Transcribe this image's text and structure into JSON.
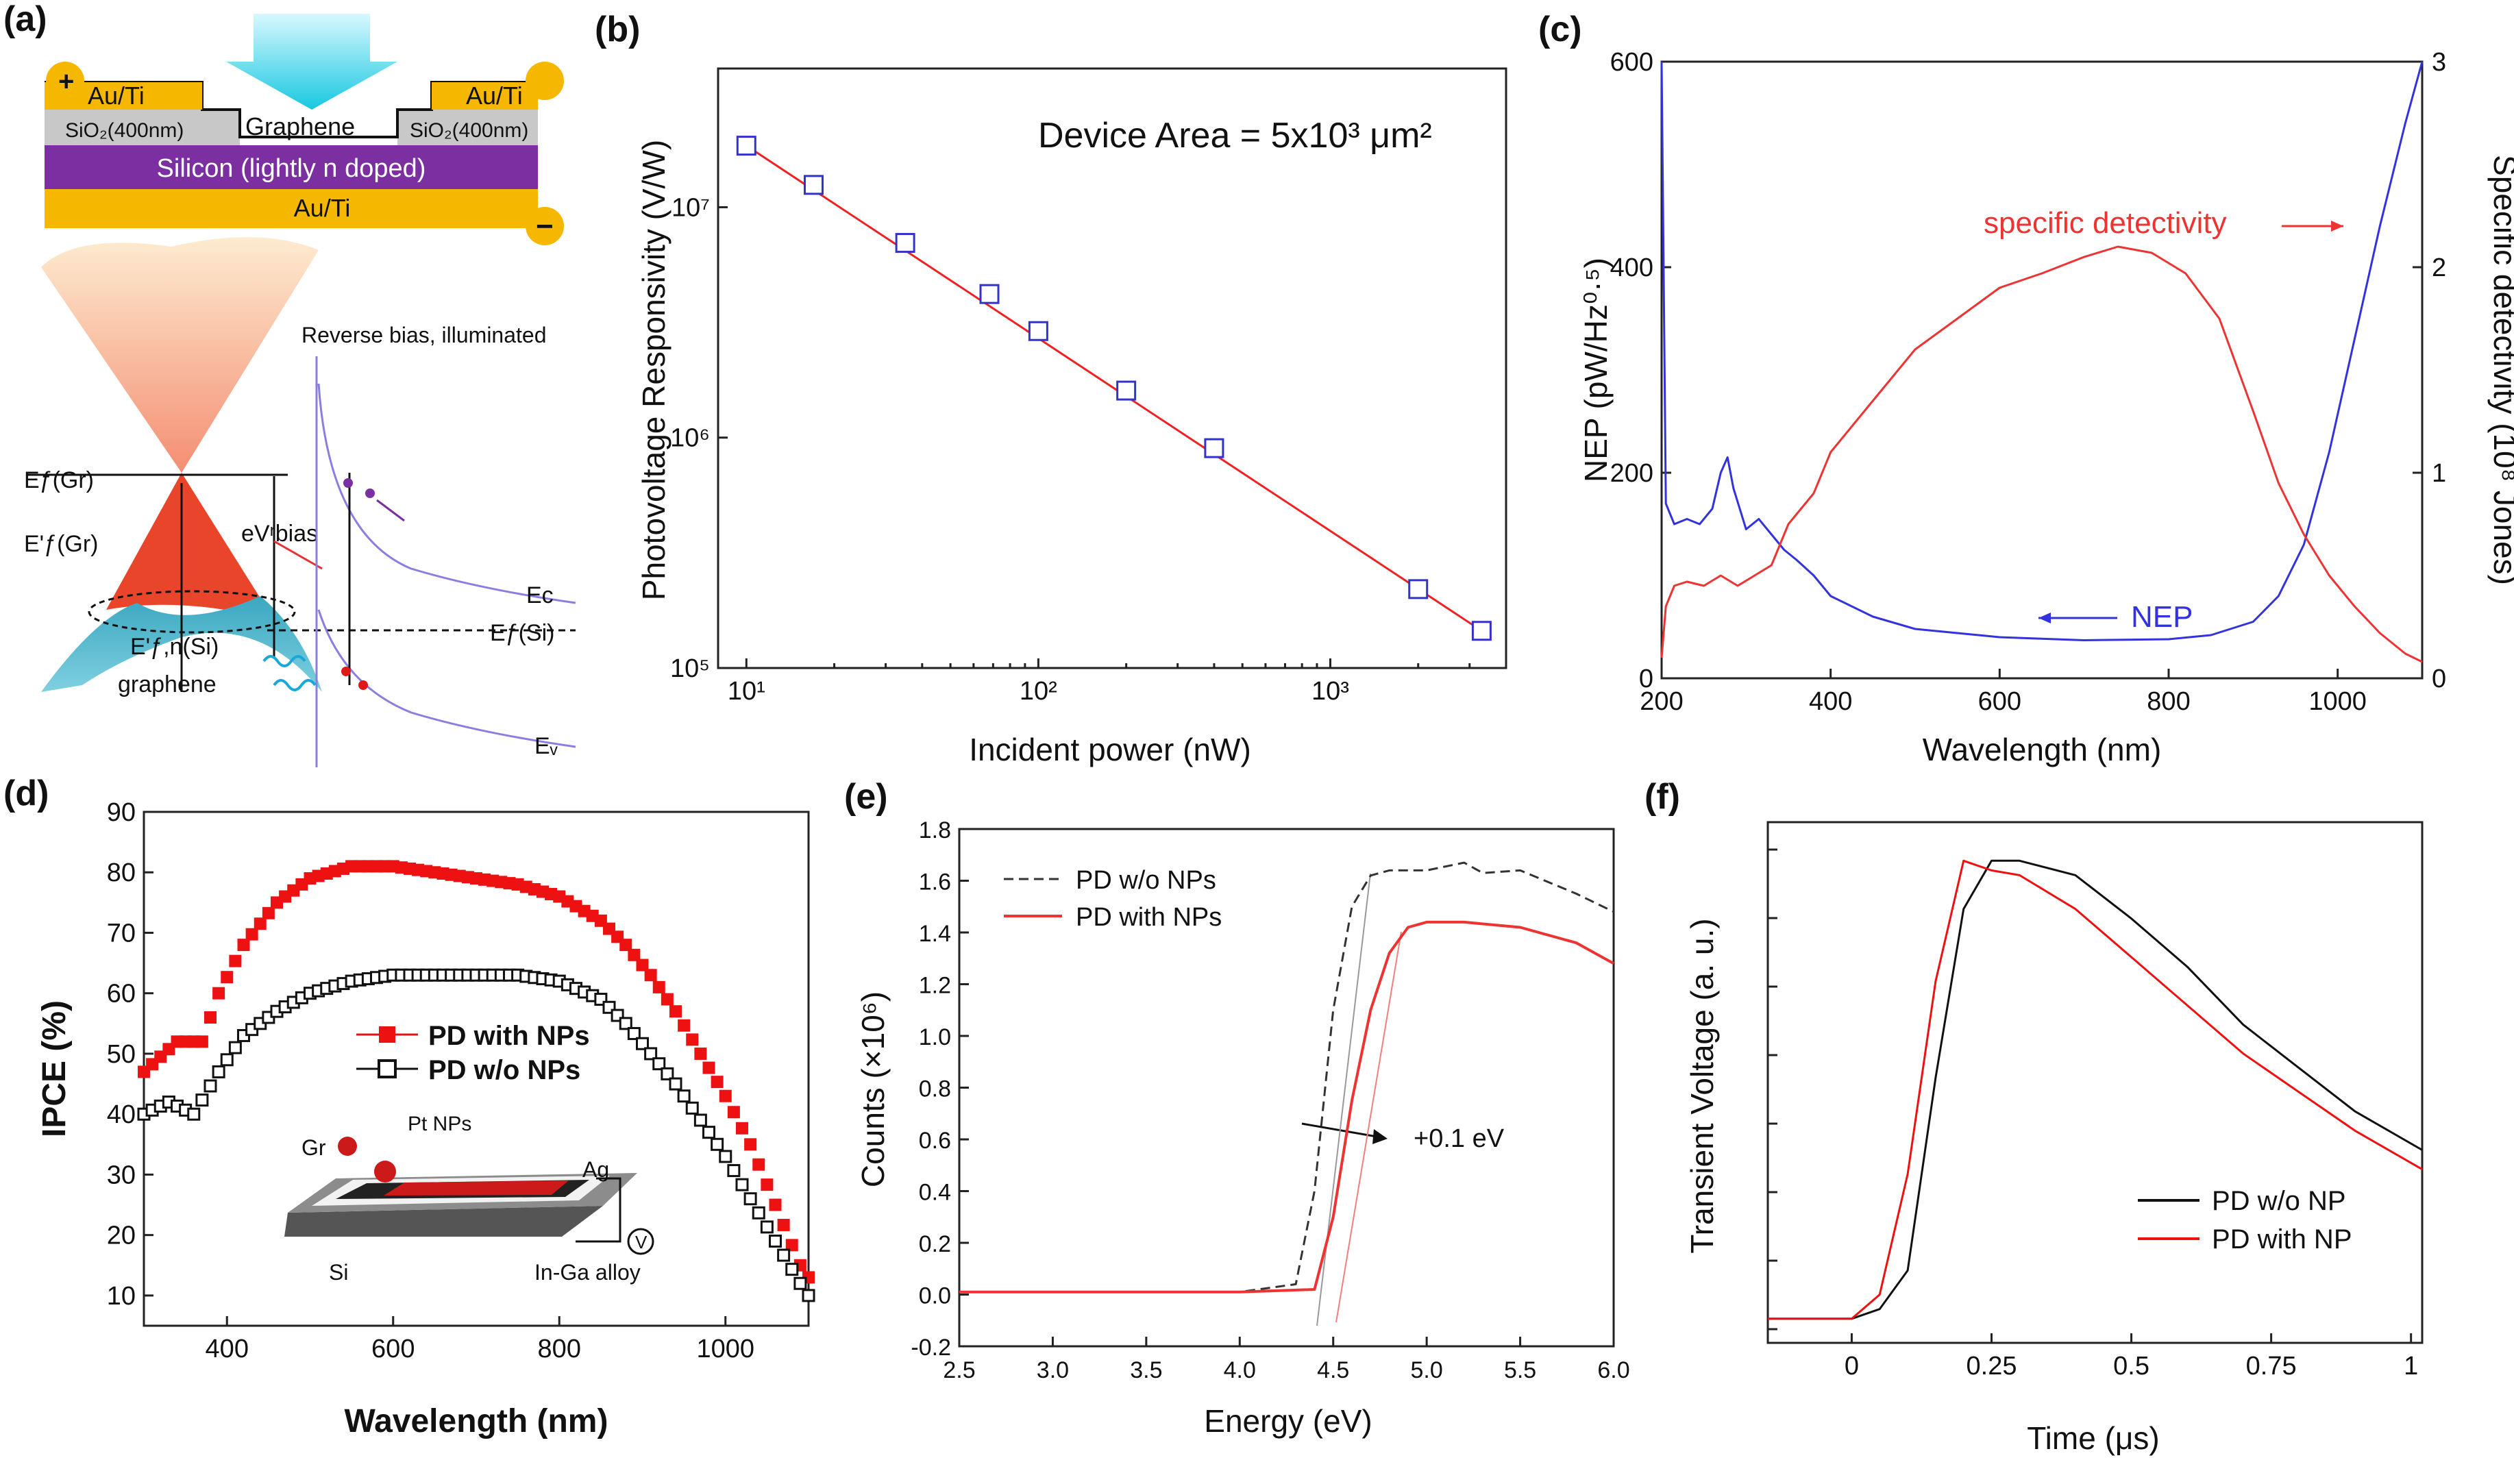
{
  "panels": {
    "a": "(a)",
    "b": "(b)",
    "c": "(c)",
    "d": "(d)",
    "e": "(e)",
    "f": "(f)"
  },
  "diagram_a": {
    "electrode_left": "Au/Ti",
    "electrode_right": "Au/Ti",
    "oxide_left": "SiO₂(400nm)",
    "oxide_right": "SiO₂(400nm)",
    "center_layer": "Graphene",
    "substrate": "Silicon (lightly n doped)",
    "back_contact": "Au/Ti",
    "plus_sign": "+",
    "minus_sign": "−",
    "title": "Reverse bias, illuminated",
    "ef_gr": "Eƒ(Gr)",
    "ef_gr_prime": "E'ƒ(Gr)",
    "efn_si": "E'ƒ,n(Si)",
    "ev_bias": "eVʳbias",
    "ec": "Eᴄ",
    "ef_si": "Eƒ(Si)",
    "ev": "Eᵥ",
    "graphene": "graphene",
    "colors": {
      "gold": "#f5b700",
      "silicon": "#7b2fa0",
      "oxide": "#c8c8c8",
      "cone": "#e8452b",
      "band": "#8a7ee0"
    }
  },
  "chart_data": [
    {
      "id": "b",
      "type": "line",
      "title": "",
      "annotation": "Device Area = 5x10³ μm²",
      "xlabel": "Incident power (nW)",
      "ylabel": "Photovoltage Responsivity (V/W)",
      "xscale": "log",
      "yscale": "log",
      "xlim": [
        8,
        4000
      ],
      "ylim": [
        100000,
        40000000
      ],
      "x_ticks": [
        "10¹",
        "10²",
        "10³"
      ],
      "y_ticks": [
        "10⁵",
        "10⁶",
        "10⁷"
      ],
      "series": [
        {
          "name": "data",
          "marker": "open-square",
          "color": "#3333cc",
          "x": [
            10,
            17,
            35,
            68,
            100,
            200,
            400,
            2000,
            3300
          ],
          "y": [
            18500000,
            12500000,
            7000000,
            4200000,
            2900000,
            1600000,
            900000,
            220000,
            145000
          ]
        },
        {
          "name": "fit",
          "line": "solid",
          "color": "#ee2222",
          "x": [
            10,
            3300
          ],
          "y": [
            18500000,
            145000
          ]
        }
      ]
    },
    {
      "id": "c",
      "type": "line",
      "xlabel": "Wavelength (nm)",
      "ylabel": "NEP (pW/Hz⁰·⁵)",
      "ylabel_right": "Specific detectivity (10⁸ Jones)",
      "xlim": [
        200,
        1100
      ],
      "ylim": [
        0,
        600
      ],
      "ylim_right": [
        0,
        3
      ],
      "x_ticks": [
        "200",
        "400",
        "600",
        "800",
        "1000"
      ],
      "y_ticks": [
        "0",
        "200",
        "400",
        "600"
      ],
      "y_ticks_right": [
        "0",
        "1",
        "2",
        "3"
      ],
      "annotations": {
        "detectivity": "specific detectivity",
        "nep": "NEP"
      },
      "series": [
        {
          "name": "NEP",
          "color": "#3333dd",
          "x": [
            200,
            205,
            215,
            230,
            245,
            260,
            270,
            278,
            285,
            300,
            315,
            330,
            345,
            360,
            380,
            400,
            450,
            500,
            600,
            700,
            800,
            850,
            900,
            930,
            960,
            990,
            1020,
            1050,
            1080,
            1100
          ],
          "y": [
            600,
            170,
            150,
            155,
            150,
            165,
            200,
            215,
            185,
            145,
            155,
            140,
            125,
            115,
            100,
            80,
            60,
            48,
            40,
            37,
            38,
            42,
            55,
            80,
            130,
            220,
            330,
            440,
            540,
            600
          ]
        },
        {
          "name": "specific detectivity",
          "color": "#ee3333",
          "axis": "right",
          "x": [
            200,
            205,
            215,
            230,
            250,
            270,
            290,
            310,
            330,
            350,
            380,
            400,
            450,
            500,
            550,
            600,
            650,
            700,
            740,
            780,
            820,
            860,
            900,
            930,
            960,
            990,
            1020,
            1050,
            1080,
            1100
          ],
          "y": [
            0.1,
            0.35,
            0.45,
            0.47,
            0.45,
            0.5,
            0.45,
            0.5,
            0.55,
            0.75,
            0.9,
            1.1,
            1.35,
            1.6,
            1.75,
            1.9,
            1.97,
            2.05,
            2.1,
            2.07,
            1.97,
            1.75,
            1.3,
            0.95,
            0.7,
            0.5,
            0.35,
            0.22,
            0.12,
            0.08
          ]
        }
      ]
    },
    {
      "id": "d",
      "type": "scatter",
      "xlabel": "Wavelength (nm)",
      "ylabel": "IPCE (%)",
      "xlim": [
        300,
        1100
      ],
      "ylim": [
        5,
        90
      ],
      "x_ticks": [
        "400",
        "600",
        "800",
        "1000"
      ],
      "y_ticks": [
        "10",
        "20",
        "30",
        "40",
        "50",
        "60",
        "70",
        "80",
        "90"
      ],
      "inset": {
        "pt": "Pt NPs",
        "gr": "Gr",
        "ag": "Ag",
        "si": "Si",
        "ingaalloy": "In-Ga alloy",
        "meter": "V"
      },
      "series": [
        {
          "name": "PD with NPs",
          "marker": "filled-square",
          "color": "#ee1111",
          "x": [
            300,
            340,
            370,
            390,
            420,
            460,
            500,
            550,
            600,
            650,
            700,
            750,
            800,
            850,
            880,
            910,
            940,
            970,
            1000,
            1030,
            1060,
            1090,
            1100
          ],
          "y": [
            47,
            52,
            52,
            60,
            68,
            75,
            79,
            81,
            81,
            80,
            79,
            78,
            76,
            72,
            68,
            63,
            57,
            50,
            43,
            35,
            25,
            15,
            13
          ]
        },
        {
          "name": "PD w/o NPs",
          "marker": "open-square",
          "color": "#111111",
          "x": [
            300,
            330,
            360,
            390,
            420,
            460,
            500,
            550,
            600,
            650,
            700,
            750,
            800,
            850,
            880,
            910,
            940,
            970,
            1000,
            1030,
            1060,
            1090,
            1100
          ],
          "y": [
            40,
            42,
            40,
            47,
            53,
            57,
            60,
            62,
            63,
            63,
            63,
            63,
            62,
            59,
            55,
            50,
            45,
            39,
            33,
            26,
            19,
            12,
            10
          ]
        }
      ]
    },
    {
      "id": "e",
      "type": "line",
      "xlabel": "Energy (eV)",
      "ylabel": "Counts (×10⁶)",
      "xlim": [
        2.5,
        6.0
      ],
      "ylim": [
        -0.2,
        1.8
      ],
      "x_ticks": [
        "2.5",
        "3.0",
        "3.5",
        "4.0",
        "4.5",
        "5.0",
        "5.5",
        "6.0"
      ],
      "y_ticks": [
        "-0.2",
        "0.0",
        "0.2",
        "0.4",
        "0.6",
        "0.8",
        "1.0",
        "1.2",
        "1.4",
        "1.6",
        "1.8"
      ],
      "annotation": "+0.1 eV",
      "series": [
        {
          "name": "PD w/o NPs",
          "line": "dashed",
          "color": "#333333",
          "x": [
            2.5,
            4.0,
            4.3,
            4.4,
            4.5,
            4.6,
            4.7,
            4.8,
            5.0,
            5.2,
            5.3,
            5.5,
            5.8,
            6.0
          ],
          "y": [
            0.01,
            0.01,
            0.04,
            0.4,
            1.1,
            1.5,
            1.62,
            1.64,
            1.64,
            1.67,
            1.63,
            1.64,
            1.55,
            1.48
          ]
        },
        {
          "name": "PD with NPs",
          "line": "solid",
          "color": "#ee3333",
          "x": [
            2.5,
            4.0,
            4.4,
            4.5,
            4.6,
            4.7,
            4.8,
            4.9,
            5.0,
            5.2,
            5.5,
            5.8,
            6.0
          ],
          "y": [
            0.01,
            0.01,
            0.02,
            0.3,
            0.75,
            1.1,
            1.32,
            1.42,
            1.44,
            1.44,
            1.42,
            1.36,
            1.28
          ]
        }
      ]
    },
    {
      "id": "f",
      "type": "line",
      "xlabel": "Time (μs)",
      "ylabel": "Transient Voltage (a. u.)",
      "xlim": [
        -0.15,
        1.02
      ],
      "ylim": [
        0,
        1.08
      ],
      "x_ticks": [
        "0",
        "0.25",
        "0.5",
        "0.75",
        "1"
      ],
      "series": [
        {
          "name": "PD w/o NP",
          "color": "#111111",
          "x": [
            -0.15,
            0.0,
            0.05,
            0.1,
            0.15,
            0.2,
            0.25,
            0.3,
            0.4,
            0.5,
            0.6,
            0.7,
            0.8,
            0.9,
            1.02
          ],
          "y": [
            0.05,
            0.05,
            0.07,
            0.15,
            0.55,
            0.9,
            1.0,
            1.0,
            0.97,
            0.88,
            0.78,
            0.66,
            0.57,
            0.48,
            0.4
          ]
        },
        {
          "name": "PD with NP",
          "color": "#ee1111",
          "x": [
            -0.15,
            0.0,
            0.05,
            0.1,
            0.15,
            0.2,
            0.25,
            0.3,
            0.4,
            0.5,
            0.6,
            0.7,
            0.8,
            0.9,
            1.02
          ],
          "y": [
            0.05,
            0.05,
            0.1,
            0.35,
            0.75,
            1.0,
            0.98,
            0.97,
            0.9,
            0.8,
            0.7,
            0.6,
            0.52,
            0.44,
            0.36
          ]
        }
      ]
    }
  ]
}
